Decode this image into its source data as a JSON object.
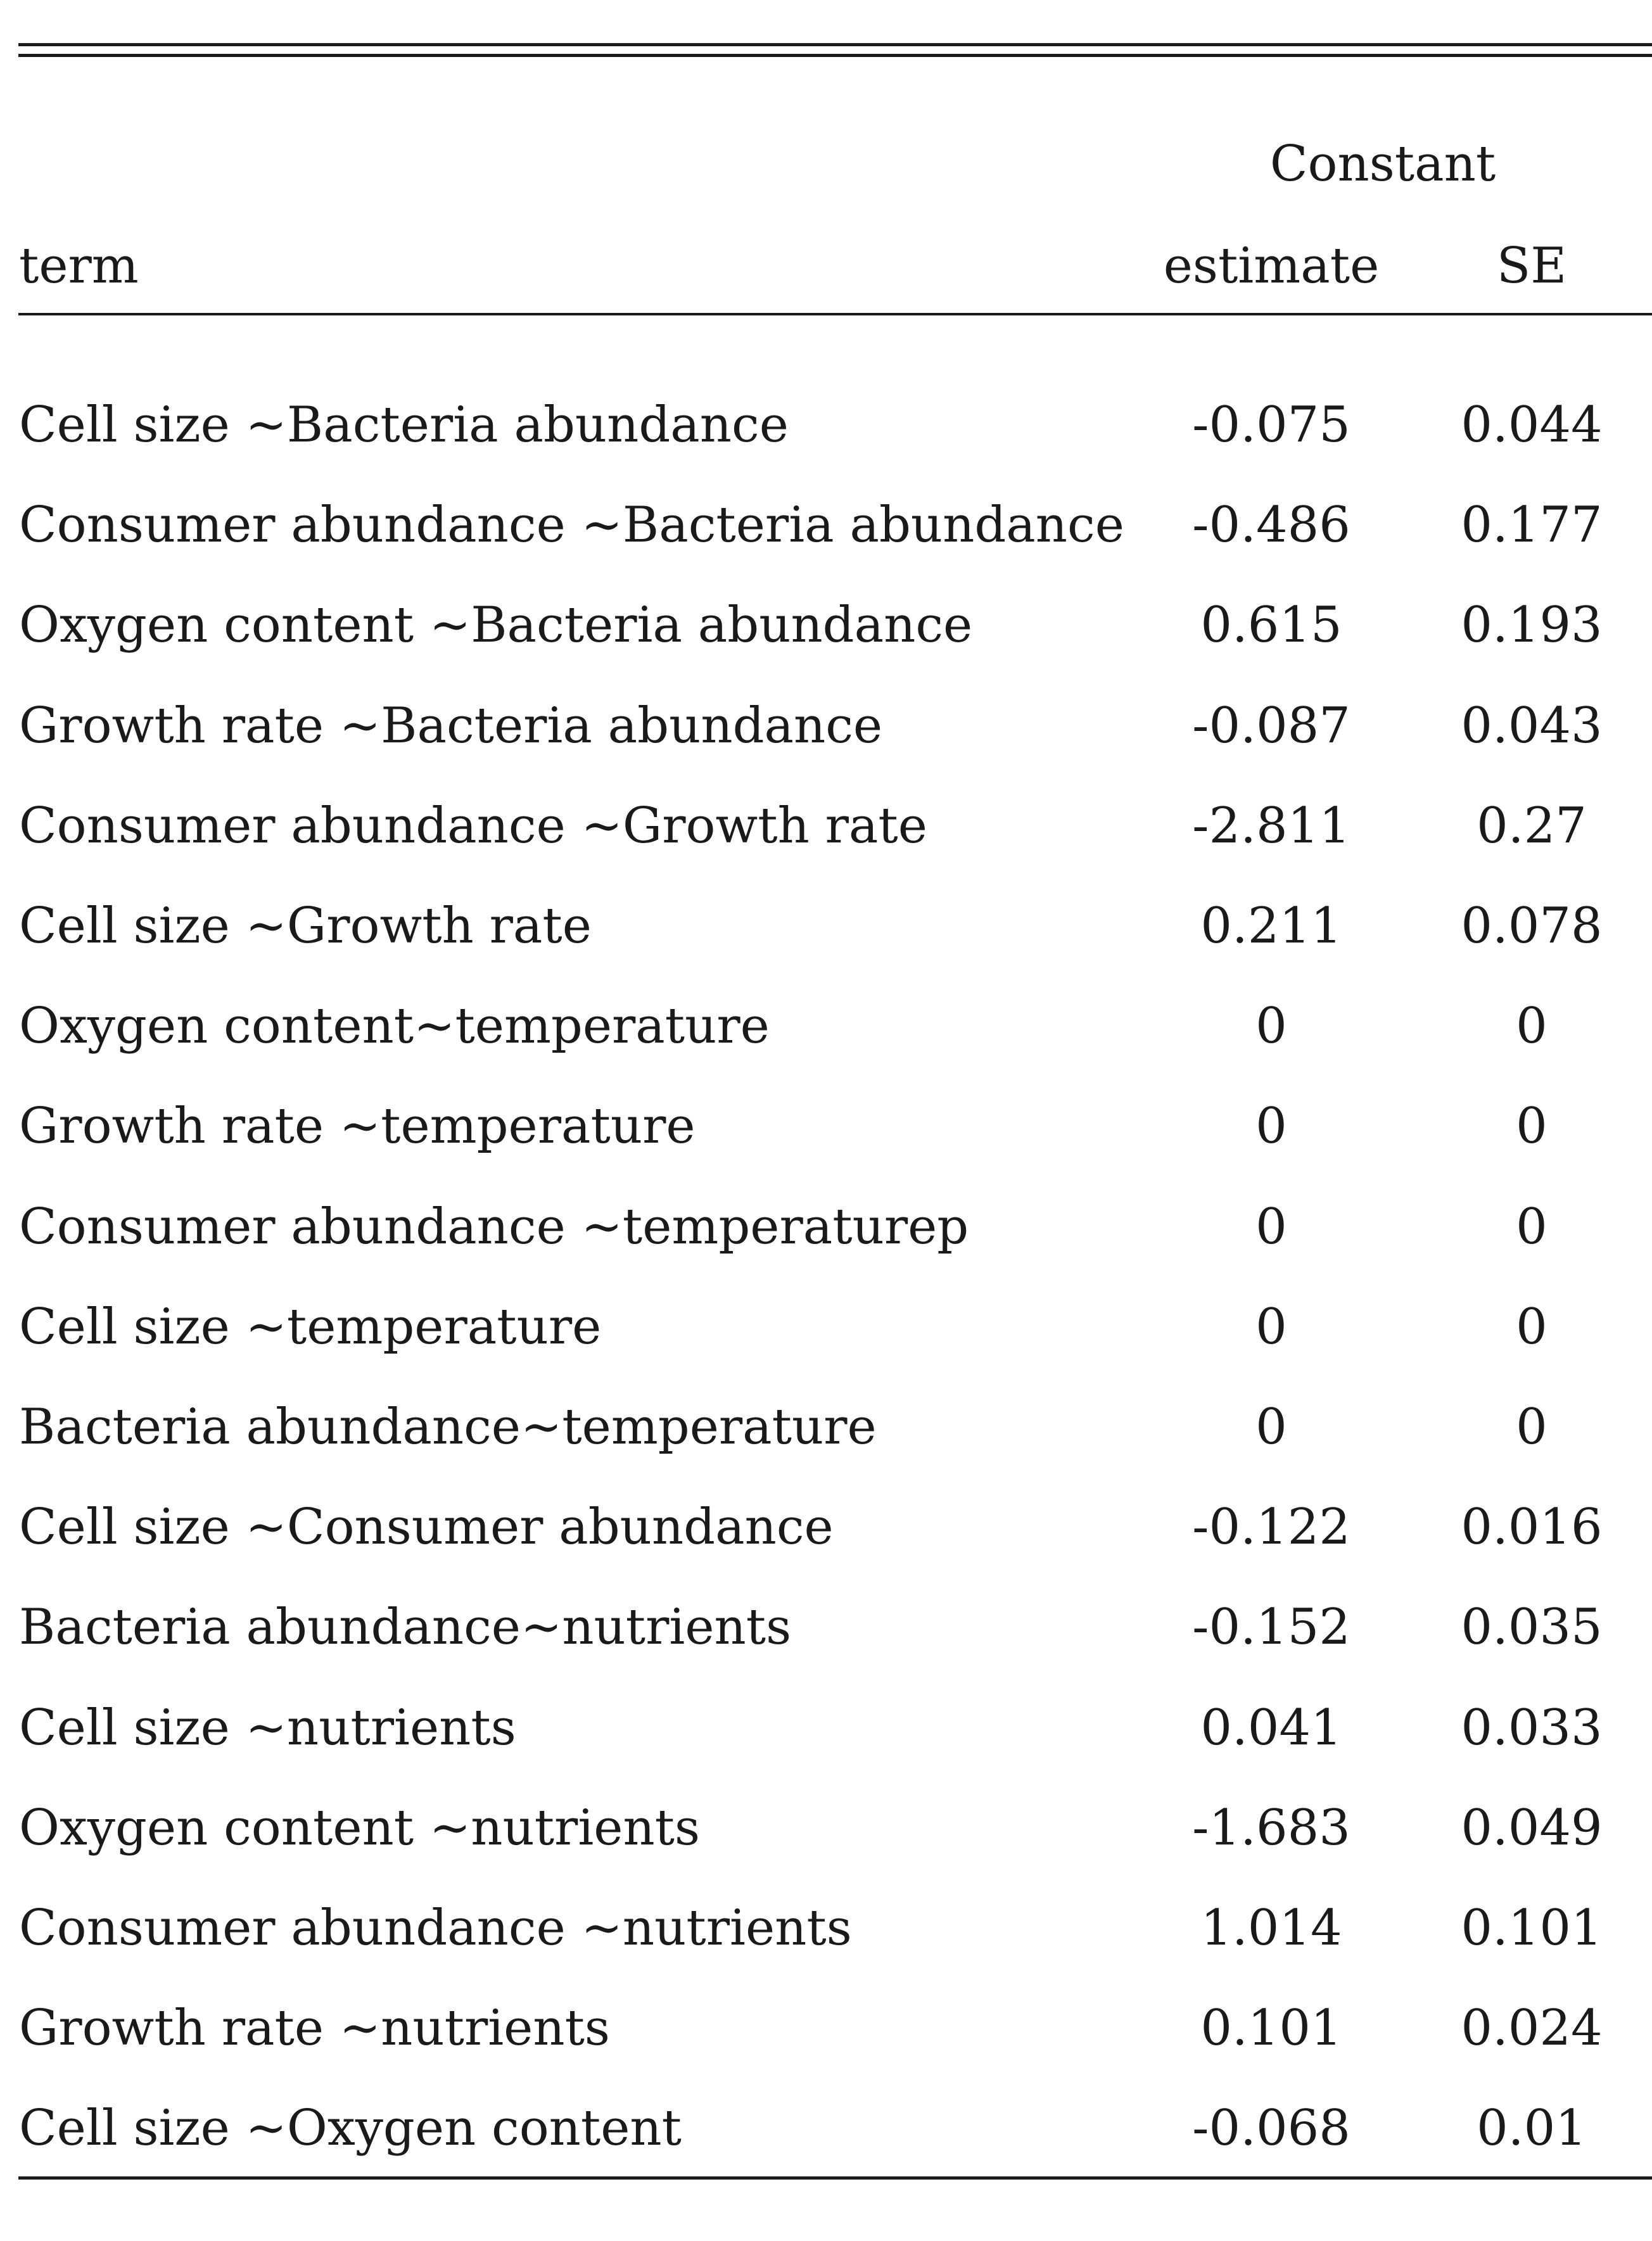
{
  "table": {
    "group_header": "Constant",
    "headers": {
      "term": "term",
      "estimate": "estimate",
      "se": "SE"
    },
    "rows": [
      {
        "term": "Cell size ~Bacteria abundance",
        "estimate": "-0.075",
        "se": "0.044"
      },
      {
        "term": "Consumer abundance ~Bacteria abundance",
        "estimate": "-0.486",
        "se": "0.177"
      },
      {
        "term": "Oxygen content ~Bacteria abundance",
        "estimate": "0.615",
        "se": "0.193"
      },
      {
        "term": "Growth rate ~Bacteria abundance",
        "estimate": "-0.087",
        "se": "0.043"
      },
      {
        "term": "Consumer abundance ~Growth rate",
        "estimate": "-2.811",
        "se": "0.27"
      },
      {
        "term": "Cell size ~Growth rate",
        "estimate": "0.211",
        "se": "0.078"
      },
      {
        "term": "Oxygen content~temperature",
        "estimate": "0",
        "se": "0"
      },
      {
        "term": "Growth rate ~temperature",
        "estimate": "0",
        "se": "0"
      },
      {
        "term": "Consumer abundance ~temperaturep",
        "estimate": "0",
        "se": "0"
      },
      {
        "term": "Cell size ~temperature",
        "estimate": "0",
        "se": "0"
      },
      {
        "term": "Bacteria abundance~temperature",
        "estimate": "0",
        "se": "0"
      },
      {
        "term": "Cell size ~Consumer abundance",
        "estimate": "-0.122",
        "se": "0.016"
      },
      {
        "term": "Bacteria abundance~nutrients",
        "estimate": "-0.152",
        "se": "0.035"
      },
      {
        "term": "Cell size ~nutrients",
        "estimate": "0.041",
        "se": "0.033"
      },
      {
        "term": "Oxygen content ~nutrients",
        "estimate": "-1.683",
        "se": "0.049"
      },
      {
        "term": "Consumer abundance ~nutrients",
        "estimate": "1.014",
        "se": "0.101"
      },
      {
        "term": "Growth rate ~nutrients",
        "estimate": "0.101",
        "se": "0.024"
      },
      {
        "term": "Cell size ~Oxygen content",
        "estimate": "-0.068",
        "se": "0.01"
      }
    ]
  }
}
